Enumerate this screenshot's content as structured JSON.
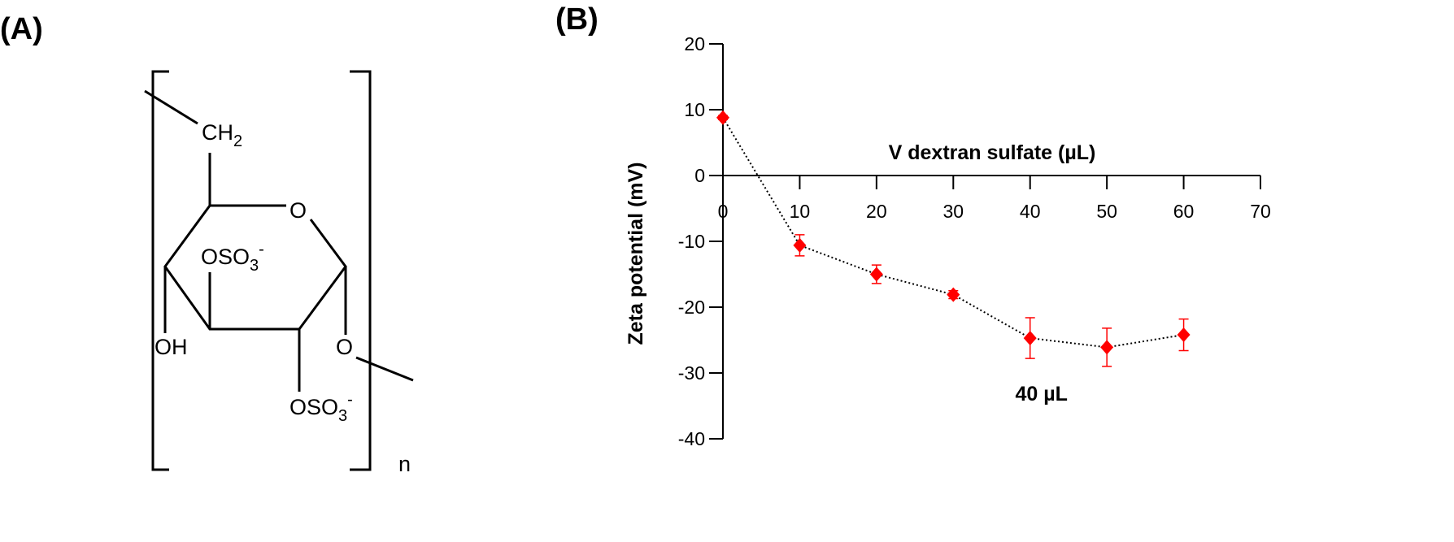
{
  "panels": [
    "(A)",
    "(B)"
  ],
  "structure": {
    "ch2": [
      "CH",
      "2"
    ],
    "ring_o": "O",
    "oso3_top": [
      "OSO",
      "3",
      "-"
    ],
    "oh": "OH",
    "link_o": "O",
    "oso3_bottom": [
      "OSO",
      "3",
      "-"
    ],
    "repeat": "n"
  },
  "chart_data": {
    "type": "scatter",
    "x_label": "V dextran sulfate (µL)",
    "y_label": "Zeta potential (mV)",
    "x": [
      0,
      10,
      20,
      30,
      40,
      50,
      60
    ],
    "values": [
      8.8,
      -10.6,
      -15.0,
      -18.1,
      -24.7,
      -26.1,
      -24.2
    ],
    "errors": [
      0.3,
      1.6,
      1.4,
      0.6,
      3.1,
      2.9,
      2.4
    ],
    "color": "#ff0000",
    "line_style": "dotted",
    "xlim": [
      0,
      70
    ],
    "xticks": [
      0,
      10,
      20,
      30,
      40,
      50,
      60,
      70
    ],
    "ylim": [
      -40,
      20
    ],
    "yticks": [
      -40,
      -30,
      -20,
      -10,
      0,
      10,
      20
    ],
    "annotation": {
      "text": "40 µL",
      "x": 40,
      "y": -31.5
    }
  }
}
